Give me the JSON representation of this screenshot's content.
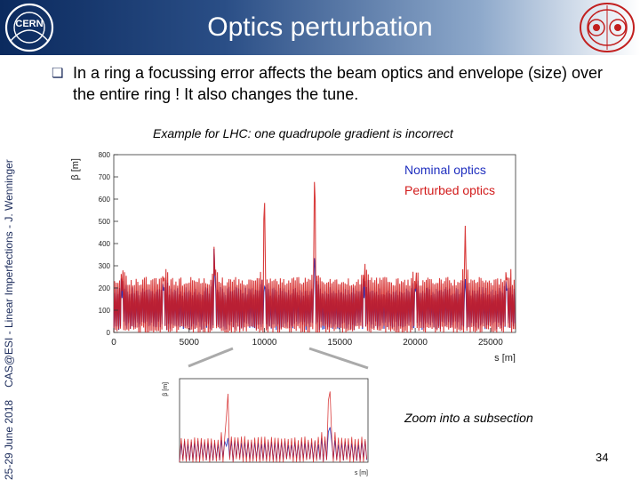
{
  "header": {
    "title": "Optics perturbation",
    "logo_text": "CERN",
    "accent_color": "#0b2a5e"
  },
  "sidebar": {
    "date": "25-29 June 2018",
    "event": "CAS@ESI - Linear Imperfections - J. Wenninger"
  },
  "bullet": {
    "icon": "checkbox-bullet-icon",
    "text": "In a ring a focussing error affects the beam optics and envelope (size) over the entire ring ! It also changes the tune."
  },
  "caption": "Example for LHC: one quadrupole gradient is incorrect",
  "zoom_caption": "Zoom into a subsection",
  "page_number": "34",
  "chart_data": [
    {
      "type": "line",
      "title": "",
      "xlabel": "s [m]",
      "ylabel": "β [m]",
      "xlim": [
        0,
        26659
      ],
      "ylim": [
        0,
        800
      ],
      "x_ticks": [
        0,
        5000,
        10000,
        15000,
        20000,
        25000
      ],
      "x_tick_labels": [
        "0",
        "5000",
        "10000",
        "15000",
        "20000",
        "25000"
      ],
      "y_ticks": [
        0,
        100,
        200,
        300,
        400,
        500,
        600,
        700,
        800
      ],
      "y_tick_labels": [
        "0",
        "100",
        "200",
        "300",
        "400",
        "500",
        "600",
        "700",
        "800"
      ],
      "grid": false,
      "series": [
        {
          "name": "Nominal optics",
          "color": "#1f2fbf",
          "baseline_low": 30,
          "baseline_high": 185,
          "peaks": [
            {
              "s": 600,
              "beta": 240
            },
            {
              "s": 3330,
              "beta": 240
            },
            {
              "s": 6660,
              "beta": 390
            },
            {
              "s": 9990,
              "beta": 240
            },
            {
              "s": 13330,
              "beta": 390
            },
            {
              "s": 16660,
              "beta": 240
            },
            {
              "s": 19990,
              "beta": 240
            },
            {
              "s": 23320,
              "beta": 240
            },
            {
              "s": 26100,
              "beta": 240
            }
          ]
        },
        {
          "name": "Perturbed optics",
          "color": "#d21b1b",
          "baseline_low": 10,
          "baseline_high": 230,
          "peaks": [
            {
              "s": 600,
              "beta": 290
            },
            {
              "s": 3330,
              "beta": 300
            },
            {
              "s": 6660,
              "beta": 400
            },
            {
              "s": 9990,
              "beta": 680
            },
            {
              "s": 13330,
              "beta": 790
            },
            {
              "s": 16660,
              "beta": 320
            },
            {
              "s": 19990,
              "beta": 250
            },
            {
              "s": 23320,
              "beta": 480
            },
            {
              "s": 26100,
              "beta": 300
            }
          ]
        }
      ]
    },
    {
      "type": "line",
      "title": "",
      "xlabel": "s [m]",
      "ylabel": "β [m]",
      "xlim": [
        8400,
        14600
      ],
      "ylim": [
        0,
        800
      ],
      "grid": false,
      "series": [
        {
          "name": "Nominal optics",
          "color": "#1f2fbf",
          "baseline_low": 30,
          "baseline_high": 185,
          "peaks": [
            {
              "s": 9990,
              "beta": 240
            },
            {
              "s": 13330,
              "beta": 390
            }
          ]
        },
        {
          "name": "Perturbed optics",
          "color": "#d21b1b",
          "baseline_low": 10,
          "baseline_high": 230,
          "peaks": [
            {
              "s": 9990,
              "beta": 680
            },
            {
              "s": 13330,
              "beta": 790
            }
          ]
        }
      ]
    }
  ]
}
